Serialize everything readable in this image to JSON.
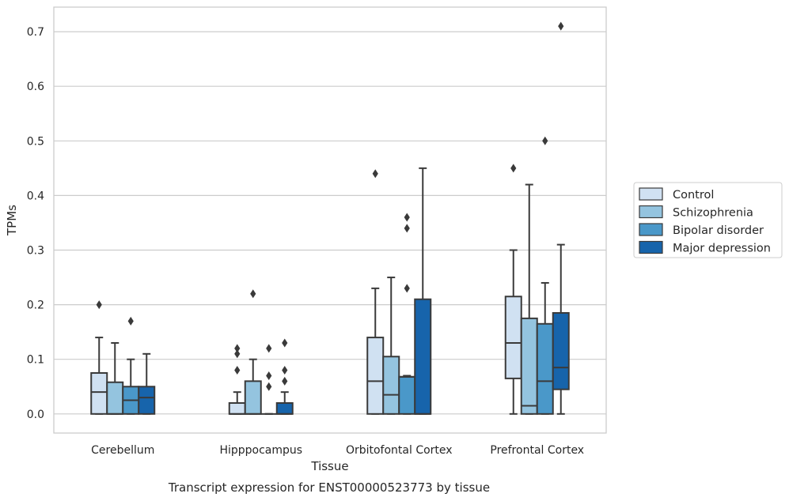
{
  "chart_data": {
    "type": "box",
    "title": "Transcript expression for ENST00000523773 by tissue",
    "xlabel": "Tissue",
    "ylabel": "TPMs",
    "ylim": [
      -0.035,
      0.745
    ],
    "yticks": [
      0.0,
      0.1,
      0.2,
      0.3,
      0.4,
      0.5,
      0.6,
      0.7
    ],
    "ytick_labels": [
      "0.0",
      "0.1",
      "0.2",
      "0.3",
      "0.4",
      "0.5",
      "0.6",
      "0.7"
    ],
    "grid": true,
    "legend_position": "right",
    "categories": [
      "Cerebellum",
      "Hipppocampus",
      "Orbitofontal Cortex",
      "Prefrontal Cortex"
    ],
    "series": [
      {
        "name": "Control",
        "color": "#d0e1f2",
        "boxes": [
          {
            "whislo": 0.0,
            "q1": 0.0,
            "med": 0.04,
            "q3": 0.075,
            "whishi": 0.14,
            "fliers": [
              0.2
            ]
          },
          {
            "whislo": 0.0,
            "q1": 0.0,
            "med": 0.0,
            "q3": 0.02,
            "whishi": 0.04,
            "fliers": [
              0.08,
              0.11,
              0.12
            ]
          },
          {
            "whislo": 0.0,
            "q1": 0.0,
            "med": 0.06,
            "q3": 0.14,
            "whishi": 0.23,
            "fliers": [
              0.44
            ]
          },
          {
            "whislo": 0.0,
            "q1": 0.065,
            "med": 0.13,
            "q3": 0.215,
            "whishi": 0.3,
            "fliers": [
              0.45
            ]
          }
        ]
      },
      {
        "name": "Schizophrenia",
        "color": "#94c4df",
        "boxes": [
          {
            "whislo": 0.0,
            "q1": 0.0,
            "med": 0.0,
            "q3": 0.058,
            "whishi": 0.13,
            "fliers": []
          },
          {
            "whislo": 0.0,
            "q1": 0.0,
            "med": 0.0,
            "q3": 0.06,
            "whishi": 0.1,
            "fliers": [
              0.22
            ]
          },
          {
            "whislo": 0.0,
            "q1": 0.0,
            "med": 0.035,
            "q3": 0.105,
            "whishi": 0.25,
            "fliers": []
          },
          {
            "whislo": 0.0,
            "q1": 0.0,
            "med": 0.015,
            "q3": 0.175,
            "whishi": 0.42,
            "fliers": []
          }
        ]
      },
      {
        "name": "Bipolar disorder",
        "color": "#4a98c9",
        "boxes": [
          {
            "whislo": 0.0,
            "q1": 0.0,
            "med": 0.025,
            "q3": 0.05,
            "whishi": 0.1,
            "fliers": [
              0.17
            ]
          },
          {
            "whislo": 0.0,
            "q1": 0.0,
            "med": 0.0,
            "q3": 0.0,
            "whishi": 0.0,
            "fliers": [
              0.05,
              0.07,
              0.12
            ]
          },
          {
            "whislo": 0.0,
            "q1": 0.0,
            "med": 0.068,
            "q3": 0.068,
            "whishi": 0.07,
            "fliers": [
              0.23,
              0.34,
              0.36
            ]
          },
          {
            "whislo": 0.0,
            "q1": 0.0,
            "med": 0.06,
            "q3": 0.165,
            "whishi": 0.24,
            "fliers": [
              0.5
            ]
          }
        ]
      },
      {
        "name": "Major depression",
        "color": "#1764ab",
        "boxes": [
          {
            "whislo": 0.0,
            "q1": 0.0,
            "med": 0.03,
            "q3": 0.05,
            "whishi": 0.11,
            "fliers": []
          },
          {
            "whislo": 0.0,
            "q1": 0.0,
            "med": 0.0,
            "q3": 0.02,
            "whishi": 0.04,
            "fliers": [
              0.06,
              0.08,
              0.13
            ]
          },
          {
            "whislo": 0.0,
            "q1": 0.0,
            "med": 0.0,
            "q3": 0.21,
            "whishi": 0.45,
            "fliers": []
          },
          {
            "whislo": 0.0,
            "q1": 0.045,
            "med": 0.085,
            "q3": 0.185,
            "whishi": 0.31,
            "fliers": [
              0.71
            ]
          }
        ]
      }
    ]
  }
}
